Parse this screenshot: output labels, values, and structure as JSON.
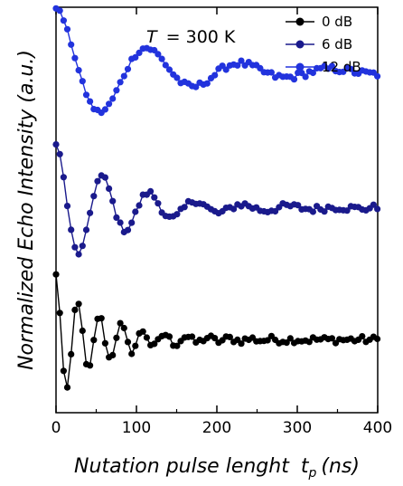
{
  "chart_data": {
    "type": "line",
    "xlabel": "Nutation pulse lenght",
    "xlabel_sub_prefix": "t",
    "xlabel_sub": "p",
    "xlabel_unit": "(ns)",
    "ylabel": "Normalized Echo Intensity (a.u.)",
    "annotation_var": "T",
    "annotation_text": "= 300 K",
    "xlim": [
      0,
      400
    ],
    "ylim": [
      0,
      10
    ],
    "x_ticks": [
      0,
      100,
      200,
      300,
      400
    ],
    "y_tick_labels_shown": false,
    "legend_position": "top-right",
    "series": [
      {
        "name": "0 dB",
        "color": "#000000",
        "offset": 1.8,
        "amplitude": 1.6,
        "period": 27,
        "decay": 55
      },
      {
        "name": "6 dB",
        "color": "#1a1a8c",
        "offset": 5.05,
        "amplitude": 1.6,
        "period": 58,
        "decay": 80
      },
      {
        "name": "12 dB",
        "color": "#2233dd",
        "offset": 8.4,
        "amplitude": 1.6,
        "period": 115,
        "decay": 115
      }
    ]
  }
}
